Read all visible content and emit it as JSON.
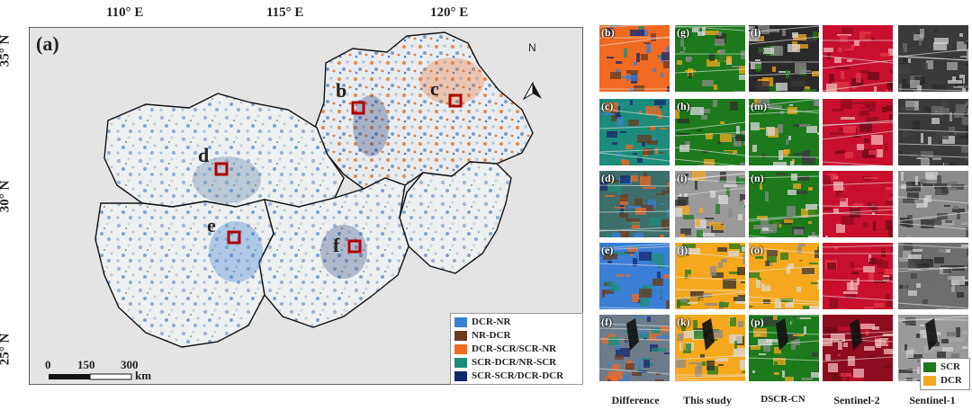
{
  "map": {
    "panel_label": "(a)",
    "lon_ticks": [
      "110° E",
      "115° E",
      "120° E"
    ],
    "lat_ticks": [
      "35° N",
      "30° N",
      "25° N"
    ],
    "north": "N",
    "scale": {
      "ticks": [
        "0",
        "150",
        "300"
      ],
      "unit": "km"
    },
    "sites": [
      "b",
      "c",
      "d",
      "e",
      "f"
    ],
    "legend": [
      {
        "label": "DCR-NR",
        "color": "#3a7fd5"
      },
      {
        "label": "NR-DCR",
        "color": "#6b3a1e"
      },
      {
        "label": "DCR-SCR/SCR-NR",
        "color": "#f06a22"
      },
      {
        "label": "SCR-DCR/NR-SCR",
        "color": "#1e8c7a"
      },
      {
        "label": "SCR-SCR/DCR-DCR",
        "color": "#14286e"
      }
    ]
  },
  "grid": {
    "columns": [
      "Difference",
      "This study",
      "DSCR-CN",
      "Sentinel-2",
      "Sentinel-1"
    ],
    "tile_labels": [
      [
        "(b)",
        "(g)",
        "(l)",
        "",
        ""
      ],
      [
        "(c)",
        "(h)",
        "(m)",
        "",
        ""
      ],
      [
        "(d)",
        "(i)",
        "(n)",
        "",
        ""
      ],
      [
        "(e)",
        "(j)",
        "(o)",
        "",
        ""
      ],
      [
        "(f)",
        "(k)",
        "(p)",
        "",
        ""
      ]
    ],
    "legend": [
      {
        "label": "SCR",
        "color": "#1c7a1c"
      },
      {
        "label": "DCR",
        "color": "#f5a81e"
      }
    ]
  }
}
